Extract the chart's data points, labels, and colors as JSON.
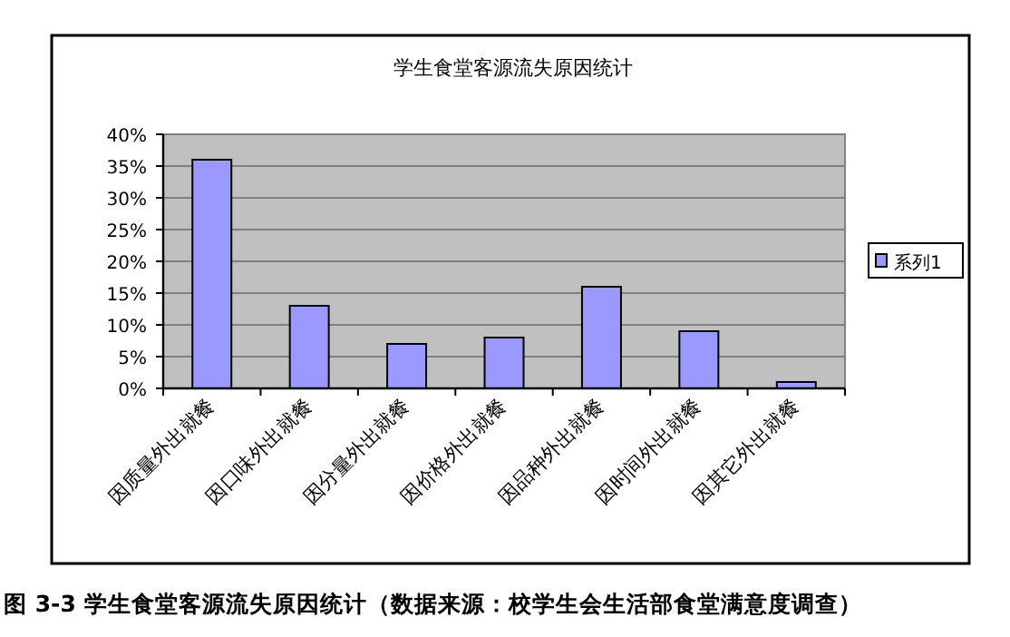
{
  "chart_data": {
    "type": "bar",
    "title": "学生食堂客源流失原因统计",
    "categories": [
      "因质量外出就餐",
      "因口味外出就餐",
      "因分量外出就餐",
      "因价格外出就餐",
      "因品种外出就餐",
      "因时间外出就餐",
      "因其它外出就餐"
    ],
    "series": [
      {
        "name": "系列1",
        "color": "#9999ff",
        "values": [
          36,
          13,
          7,
          8,
          16,
          9,
          1
        ]
      }
    ],
    "ylim": [
      0,
      40
    ],
    "yticks": [
      {
        "value": 0,
        "label": "0%"
      },
      {
        "value": 5,
        "label": "5%"
      },
      {
        "value": 10,
        "label": "10%"
      },
      {
        "value": 15,
        "label": "15%"
      },
      {
        "value": 20,
        "label": "20%"
      },
      {
        "value": 25,
        "label": "25%"
      },
      {
        "value": 30,
        "label": "30%"
      },
      {
        "value": 35,
        "label": "35%"
      },
      {
        "value": 40,
        "label": "40%"
      }
    ],
    "grid": "y",
    "legend": "right",
    "annotations": [
      "图 3-3 学生食堂客源流失原因统计（数据来源：校学生会生活部食堂满意度调查）"
    ]
  }
}
